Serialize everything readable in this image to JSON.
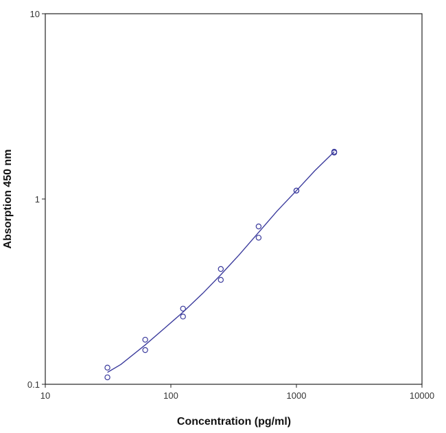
{
  "chart_data": {
    "type": "scatter",
    "xlabel": "Concentration (pg/ml)",
    "ylabel": "Absorption 450 nm",
    "x_scale": "log",
    "y_scale": "log",
    "xlim": [
      10,
      10000
    ],
    "ylim": [
      0.1,
      10
    ],
    "x_ticks": [
      10,
      100,
      1000,
      10000
    ],
    "x_tick_labels": [
      "10",
      "100",
      "1000",
      "10000"
    ],
    "y_ticks": [
      0.1,
      1,
      10
    ],
    "y_tick_labels": [
      "0.1",
      "1",
      "10"
    ],
    "grid": false,
    "legend": "none",
    "series": [
      {
        "points": [
          {
            "x": 31.25,
            "y": 0.123
          },
          {
            "x": 31.25,
            "y": 0.109
          },
          {
            "x": 62.5,
            "y": 0.174
          },
          {
            "x": 62.5,
            "y": 0.153
          },
          {
            "x": 125,
            "y": 0.256
          },
          {
            "x": 125,
            "y": 0.232
          },
          {
            "x": 250,
            "y": 0.419
          },
          {
            "x": 250,
            "y": 0.366
          },
          {
            "x": 500,
            "y": 0.711
          },
          {
            "x": 500,
            "y": 0.618
          },
          {
            "x": 1000,
            "y": 1.11
          },
          {
            "x": 1000,
            "y": 1.11
          },
          {
            "x": 2000,
            "y": 1.8
          },
          {
            "x": 2000,
            "y": 1.78
          }
        ],
        "fit_curve": [
          {
            "x": 31.25,
            "y": 0.116
          },
          {
            "x": 40,
            "y": 0.128
          },
          {
            "x": 62.5,
            "y": 0.163
          },
          {
            "x": 90,
            "y": 0.202
          },
          {
            "x": 125,
            "y": 0.245
          },
          {
            "x": 180,
            "y": 0.31
          },
          {
            "x": 250,
            "y": 0.39
          },
          {
            "x": 350,
            "y": 0.5
          },
          {
            "x": 500,
            "y": 0.66
          },
          {
            "x": 700,
            "y": 0.86
          },
          {
            "x": 1000,
            "y": 1.11
          },
          {
            "x": 1400,
            "y": 1.42
          },
          {
            "x": 2000,
            "y": 1.8
          }
        ],
        "color": "#3a3a9c"
      }
    ]
  }
}
